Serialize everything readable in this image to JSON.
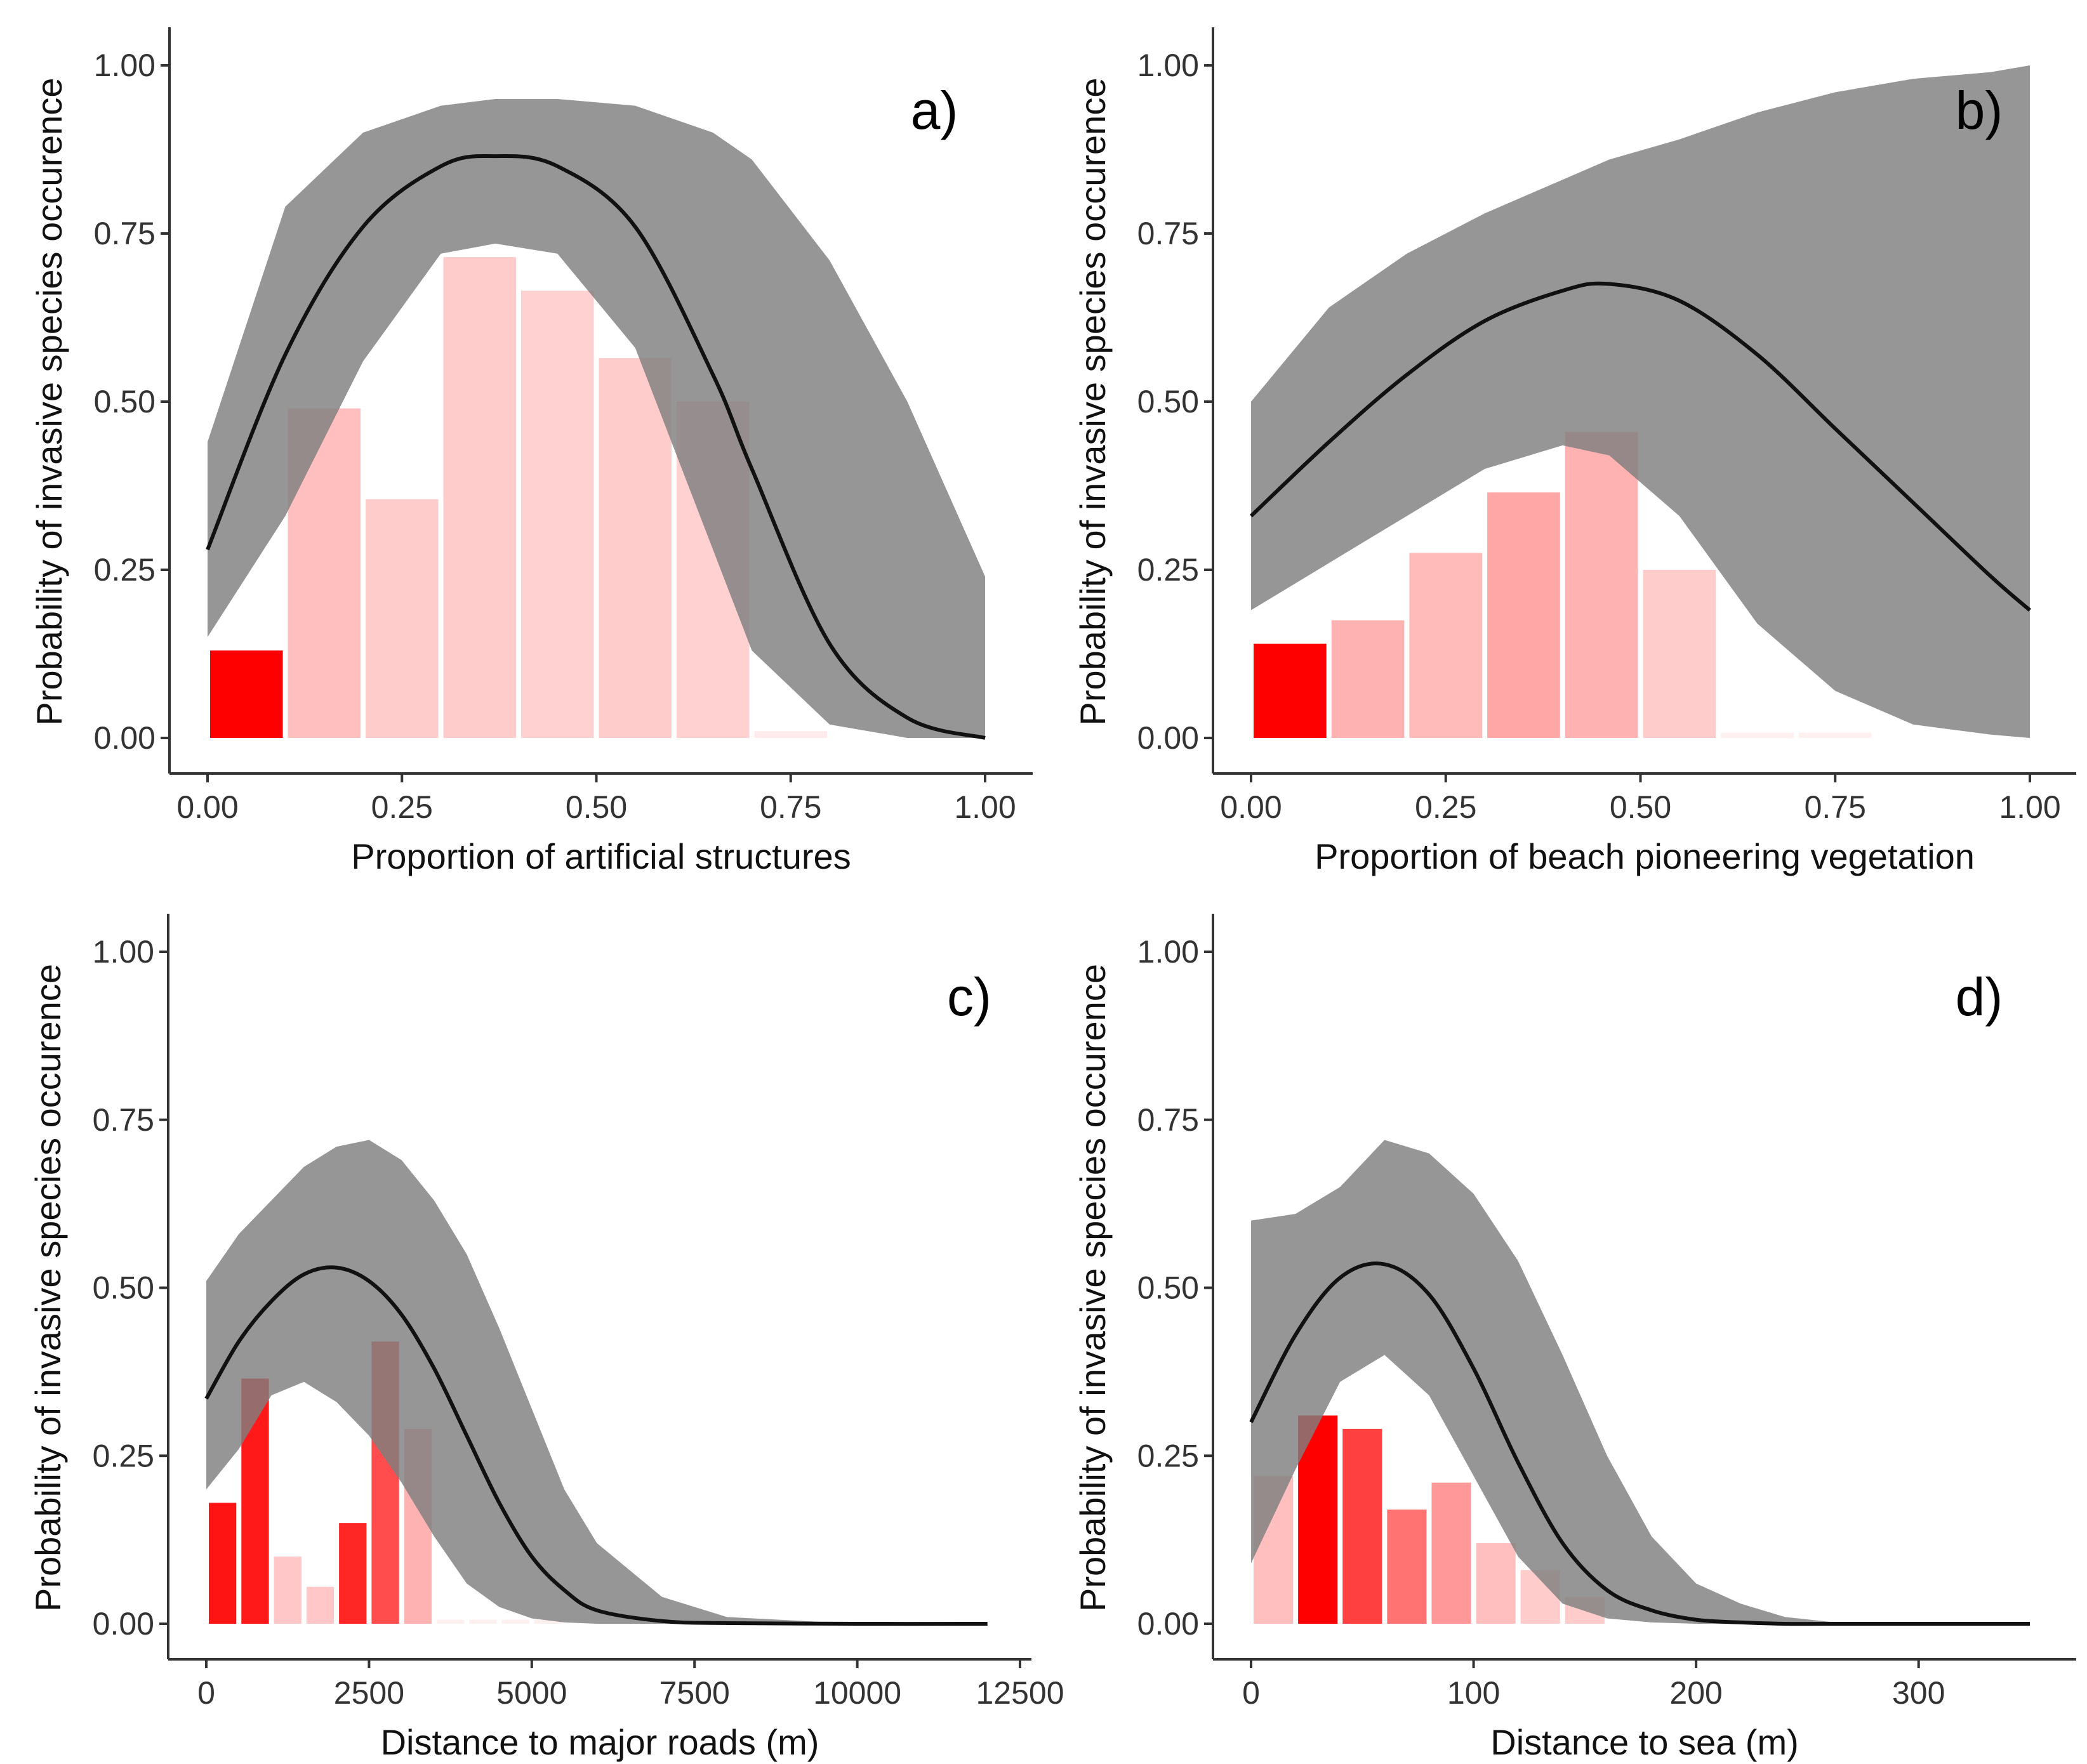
{
  "figure": {
    "background": "#ffffff",
    "ci_color": "#7f7f7f",
    "curve_color": "#111111",
    "bar_color": "#ff0000"
  },
  "chart_data": [
    {
      "type": "line",
      "panel_label": "a)",
      "xlabel": "Proportion of artificial structures",
      "ylabel": "Probability of invasive species occurence",
      "xlim": [
        0,
        1
      ],
      "ylim": [
        0,
        1
      ],
      "xticks": [
        0,
        0.25,
        0.5,
        0.75,
        1
      ],
      "xtick_labels": [
        "0.00",
        "0.25",
        "0.50",
        "0.75",
        "1.00"
      ],
      "yticks": [
        0,
        0.25,
        0.5,
        0.75,
        1
      ],
      "ytick_labels": [
        "0.00",
        "0.25",
        "0.50",
        "0.75",
        "1.00"
      ],
      "grid": false,
      "fit": {
        "x": [
          0,
          0.1,
          0.2,
          0.3,
          0.37,
          0.45,
          0.55,
          0.65,
          0.7,
          0.8,
          0.9,
          1.0
        ],
        "y": [
          0.28,
          0.57,
          0.76,
          0.85,
          0.865,
          0.85,
          0.76,
          0.54,
          0.4,
          0.14,
          0.03,
          0.0
        ],
        "lower": [
          0.15,
          0.33,
          0.56,
          0.72,
          0.735,
          0.72,
          0.58,
          0.28,
          0.13,
          0.02,
          0.0,
          0.0
        ],
        "upper": [
          0.44,
          0.79,
          0.9,
          0.94,
          0.95,
          0.95,
          0.94,
          0.9,
          0.86,
          0.71,
          0.5,
          0.24
        ]
      },
      "histogram": {
        "bins": [
          [
            0,
            0.1
          ],
          [
            0.1,
            0.2
          ],
          [
            0.2,
            0.3
          ],
          [
            0.3,
            0.4
          ],
          [
            0.4,
            0.5
          ],
          [
            0.5,
            0.6
          ],
          [
            0.6,
            0.7
          ],
          [
            0.7,
            0.8
          ]
        ],
        "values": [
          0.13,
          0.49,
          0.355,
          0.715,
          0.665,
          0.565,
          0.5,
          0.01
        ],
        "opacity": [
          1.0,
          0.25,
          0.2,
          0.2,
          0.18,
          0.2,
          0.18,
          0.08
        ]
      }
    },
    {
      "type": "line",
      "panel_label": "b)",
      "xlabel": "Proportion of beach pioneering vegetation",
      "ylabel": "Probability of invasive species occurence",
      "xlim": [
        0,
        1
      ],
      "ylim": [
        0,
        1
      ],
      "xticks": [
        0,
        0.25,
        0.5,
        0.75,
        1
      ],
      "xtick_labels": [
        "0.00",
        "0.25",
        "0.50",
        "0.75",
        "1.00"
      ],
      "yticks": [
        0,
        0.25,
        0.5,
        0.75,
        1
      ],
      "ytick_labels": [
        "0.00",
        "0.25",
        "0.50",
        "0.75",
        "1.00"
      ],
      "grid": false,
      "fit": {
        "x": [
          0,
          0.1,
          0.2,
          0.3,
          0.4,
          0.46,
          0.55,
          0.65,
          0.75,
          0.85,
          0.95,
          1.0
        ],
        "y": [
          0.33,
          0.44,
          0.54,
          0.62,
          0.665,
          0.675,
          0.65,
          0.57,
          0.46,
          0.35,
          0.24,
          0.19
        ],
        "lower": [
          0.19,
          0.26,
          0.33,
          0.4,
          0.435,
          0.42,
          0.33,
          0.17,
          0.07,
          0.02,
          0.005,
          0.0
        ],
        "upper": [
          0.5,
          0.64,
          0.72,
          0.78,
          0.83,
          0.86,
          0.89,
          0.93,
          0.96,
          0.98,
          0.99,
          1.0
        ]
      },
      "histogram": {
        "bins": [
          [
            0,
            0.1
          ],
          [
            0.1,
            0.2
          ],
          [
            0.2,
            0.3
          ],
          [
            0.3,
            0.4
          ],
          [
            0.4,
            0.5
          ],
          [
            0.5,
            0.6
          ],
          [
            0.6,
            0.7
          ],
          [
            0.7,
            0.8
          ]
        ],
        "values": [
          0.14,
          0.175,
          0.275,
          0.365,
          0.455,
          0.25,
          0.008,
          0.008
        ],
        "opacity": [
          1.0,
          0.3,
          0.27,
          0.35,
          0.3,
          0.2,
          0.06,
          0.06
        ]
      }
    },
    {
      "type": "line",
      "panel_label": "c)",
      "xlabel": "Distance to major roads (m)",
      "ylabel": "Probability of invasive species occurence",
      "xlim": [
        0,
        12500
      ],
      "ylim": [
        0,
        1
      ],
      "xticks": [
        0,
        2500,
        5000,
        7500,
        10000,
        12500
      ],
      "xtick_labels": [
        "0",
        "2500",
        "5000",
        "7500",
        "10000",
        "12500"
      ],
      "yticks": [
        0,
        0.25,
        0.5,
        0.75,
        1
      ],
      "ytick_labels": [
        "0.00",
        "0.25",
        "0.50",
        "0.75",
        "1.00"
      ],
      "grid": false,
      "fit": {
        "x": [
          0,
          500,
          1000,
          1500,
          2000,
          2500,
          3000,
          3500,
          4000,
          4500,
          5000,
          5500,
          6000,
          7000,
          8000,
          10000,
          12000
        ],
        "y": [
          0.335,
          0.42,
          0.48,
          0.52,
          0.53,
          0.51,
          0.46,
          0.38,
          0.28,
          0.18,
          0.1,
          0.05,
          0.02,
          0.004,
          0.001,
          0.0,
          0.0
        ],
        "lower": [
          0.2,
          0.26,
          0.34,
          0.36,
          0.33,
          0.28,
          0.21,
          0.13,
          0.06,
          0.025,
          0.008,
          0.002,
          0.0,
          0.0,
          0.0,
          0.0,
          0.0
        ],
        "upper": [
          0.51,
          0.58,
          0.63,
          0.68,
          0.71,
          0.72,
          0.69,
          0.63,
          0.55,
          0.44,
          0.32,
          0.2,
          0.12,
          0.04,
          0.01,
          0.0,
          0.0
        ]
      },
      "histogram": {
        "bins": [
          [
            0,
            500
          ],
          [
            500,
            1000
          ],
          [
            1000,
            1500
          ],
          [
            1500,
            2000
          ],
          [
            2000,
            2500
          ],
          [
            2500,
            3000
          ],
          [
            3000,
            3500
          ],
          [
            3500,
            4000
          ],
          [
            4000,
            4500
          ],
          [
            4500,
            5000
          ],
          [
            5000,
            5500
          ]
        ],
        "values": [
          0.18,
          0.365,
          0.1,
          0.055,
          0.15,
          0.42,
          0.29,
          0.006,
          0.006,
          0.006,
          0.006
        ],
        "opacity": [
          0.92,
          0.9,
          0.22,
          0.22,
          0.85,
          0.7,
          0.3,
          0.06,
          0.06,
          0.06,
          0.06
        ]
      }
    },
    {
      "type": "line",
      "panel_label": "d)",
      "xlabel": "Distance to sea (m)",
      "ylabel": "Probability of invasive species occurence",
      "xlim": [
        0,
        350
      ],
      "ylim": [
        0,
        1
      ],
      "xticks": [
        0,
        100,
        200,
        300
      ],
      "xtick_labels": [
        "0",
        "100",
        "200",
        "300"
      ],
      "yticks": [
        0,
        0.25,
        0.5,
        0.75,
        1
      ],
      "ytick_labels": [
        "0.00",
        "0.25",
        "0.50",
        "0.75",
        "1.00"
      ],
      "grid": false,
      "fit": {
        "x": [
          0,
          20,
          40,
          60,
          80,
          100,
          120,
          140,
          160,
          180,
          200,
          220,
          240,
          260,
          300,
          350
        ],
        "y": [
          0.3,
          0.43,
          0.515,
          0.535,
          0.49,
          0.38,
          0.24,
          0.12,
          0.05,
          0.02,
          0.006,
          0.002,
          0.0,
          0.0,
          0.0,
          0.0
        ],
        "lower": [
          0.09,
          0.23,
          0.36,
          0.4,
          0.34,
          0.22,
          0.1,
          0.03,
          0.008,
          0.002,
          0.0,
          0.0,
          0.0,
          0.0,
          0.0,
          0.0
        ],
        "upper": [
          0.6,
          0.61,
          0.65,
          0.72,
          0.7,
          0.64,
          0.54,
          0.4,
          0.25,
          0.13,
          0.06,
          0.03,
          0.01,
          0.003,
          0.0,
          0.0
        ]
      },
      "histogram": {
        "bins": [
          [
            0,
            20
          ],
          [
            20,
            40
          ],
          [
            40,
            60
          ],
          [
            60,
            80
          ],
          [
            80,
            100
          ],
          [
            100,
            120
          ],
          [
            120,
            140
          ],
          [
            140,
            160
          ]
        ],
        "values": [
          0.22,
          0.31,
          0.29,
          0.17,
          0.21,
          0.12,
          0.08,
          0.04
        ],
        "opacity": [
          0.25,
          1.0,
          0.75,
          0.55,
          0.4,
          0.25,
          0.2,
          0.2
        ]
      }
    }
  ]
}
